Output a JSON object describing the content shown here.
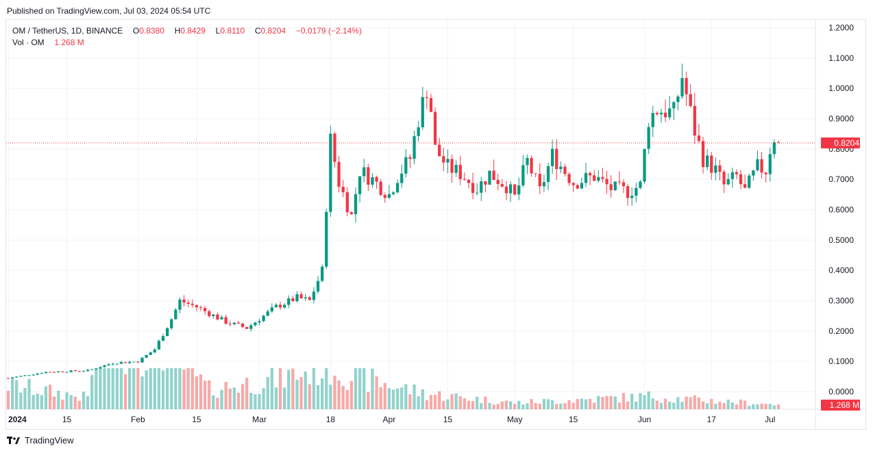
{
  "header": {
    "published": "Published on TradingView.com, Jul 03, 2024 05:54 UTC"
  },
  "legend": {
    "symbol": "OM / TetherUS, 1D, BINANCE",
    "open_label": "O",
    "open": "0.8380",
    "high_label": "H",
    "high": "0.8429",
    "low_label": "L",
    "low": "0.8110",
    "close_label": "C",
    "close": "0.8204",
    "change": "−0.0179 (−2.14%)",
    "vol_label": "Vol · OM",
    "vol_value": "1.268 M"
  },
  "footer": {
    "brand": "TradingView"
  },
  "colors": {
    "up": "#089981",
    "down": "#f23645",
    "vol_up": "#92d2cc",
    "vol_down": "#f7a9a7",
    "grid": "#f0f3fa",
    "text": "#131722",
    "badge": "#f23645"
  },
  "chart_data": {
    "type": "candlestick",
    "symbol": "OM / TetherUS",
    "interval": "1D",
    "exchange": "BINANCE",
    "y_axis": {
      "ylim": [
        0.0,
        1.2
      ],
      "tick_labels": [
        "1.2000",
        "1.1000",
        "1.0000",
        "0.9000",
        "0.8000",
        "0.7000",
        "0.6000",
        "0.5000",
        "0.4000",
        "0.3000",
        "0.2000",
        "0.1000",
        "0.0000"
      ]
    },
    "x_axis": {
      "start_date": "2024-01-01",
      "end_date": "2024-07-03",
      "tick_labels": [
        {
          "date": "2024-01-01",
          "label": "2024"
        },
        {
          "date": "2024-01-15",
          "label": "15"
        },
        {
          "date": "2024-02-01",
          "label": "Feb"
        },
        {
          "date": "2024-02-15",
          "label": "15"
        },
        {
          "date": "2024-03-01",
          "label": "Mar"
        },
        {
          "date": "2024-03-18",
          "label": "18"
        },
        {
          "date": "2024-04-01",
          "label": "Apr"
        },
        {
          "date": "2024-04-15",
          "label": "15"
        },
        {
          "date": "2024-05-01",
          "label": "May"
        },
        {
          "date": "2024-05-15",
          "label": "15"
        },
        {
          "date": "2024-06-01",
          "label": "Jun"
        },
        {
          "date": "2024-06-17",
          "label": "17"
        },
        {
          "date": "2024-07-01",
          "label": "Jul"
        }
      ]
    },
    "last_price": {
      "value": 0.8204,
      "label": "0.8204"
    },
    "last_volume": {
      "label": "1.268 M"
    },
    "close_series": {
      "dates": [
        "2024-01-01",
        "2024-01-10",
        "2024-01-20",
        "2024-01-26",
        "2024-02-01",
        "2024-02-05",
        "2024-02-09",
        "2024-02-11",
        "2024-02-15",
        "2024-02-22",
        "2024-02-27",
        "2024-03-01",
        "2024-03-05",
        "2024-03-10",
        "2024-03-13",
        "2024-03-16",
        "2024-03-18",
        "2024-03-20",
        "2024-03-23",
        "2024-03-25",
        "2024-03-28",
        "2024-04-01",
        "2024-04-03",
        "2024-04-06",
        "2024-04-08",
        "2024-04-10",
        "2024-04-11",
        "2024-04-12",
        "2024-04-15",
        "2024-04-18",
        "2024-04-22",
        "2024-04-25",
        "2024-04-29",
        "2024-05-01",
        "2024-05-04",
        "2024-05-07",
        "2024-05-10",
        "2024-05-15",
        "2024-05-20",
        "2024-05-24",
        "2024-05-28",
        "2024-05-31",
        "2024-06-02",
        "2024-06-04",
        "2024-06-08",
        "2024-06-10",
        "2024-06-11",
        "2024-06-13",
        "2024-06-15",
        "2024-06-18",
        "2024-06-20",
        "2024-06-23",
        "2024-06-25",
        "2024-06-28",
        "2024-06-30",
        "2024-07-01",
        "2024-07-02",
        "2024-07-03"
      ],
      "close": [
        0.045,
        0.065,
        0.07,
        0.095,
        0.1,
        0.14,
        0.24,
        0.3,
        0.28,
        0.23,
        0.21,
        0.24,
        0.28,
        0.31,
        0.3,
        0.4,
        0.83,
        0.69,
        0.58,
        0.73,
        0.7,
        0.65,
        0.71,
        0.77,
        0.9,
        1.0,
        0.93,
        0.8,
        0.74,
        0.72,
        0.67,
        0.72,
        0.68,
        0.64,
        0.76,
        0.66,
        0.78,
        0.69,
        0.71,
        0.67,
        0.66,
        0.68,
        0.9,
        0.93,
        0.92,
        1.04,
        0.98,
        0.86,
        0.77,
        0.73,
        0.68,
        0.71,
        0.66,
        0.74,
        0.73,
        0.8,
        0.84,
        0.8204
      ]
    },
    "volume_series": {
      "dates": [
        "2024-01-01",
        "2024-01-20",
        "2024-01-22",
        "2024-02-05",
        "2024-02-09",
        "2024-02-11",
        "2024-02-18",
        "2024-03-05",
        "2024-03-18",
        "2024-03-25",
        "2024-04-10",
        "2024-05-01",
        "2024-06-02",
        "2024-06-10",
        "2024-07-03"
      ],
      "volume_m": [
        6.8,
        3.2,
        18.9,
        17.0,
        19.7,
        13.1,
        5.5,
        8.4,
        11.9,
        8.8,
        4.3,
        1.8,
        3.6,
        2.9,
        1.268
      ]
    }
  }
}
